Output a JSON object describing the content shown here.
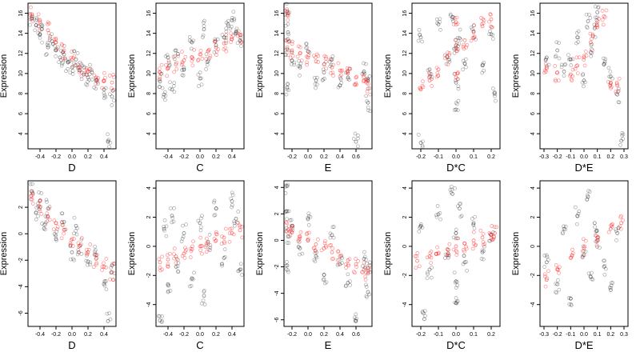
{
  "chart_data": [
    {
      "type": "scatter",
      "xlabel": "D",
      "ylabel": "Expression",
      "xlim": [
        -0.55,
        0.55
      ],
      "ylim": [
        2.5,
        17
      ],
      "xticks": [
        -0.4,
        -0.2,
        0.0,
        0.2,
        0.4
      ],
      "xticklabels": [
        "-0.4",
        "-0.2",
        "0.0",
        "0.2",
        "0.4"
      ],
      "yticks": [
        4,
        6,
        8,
        10,
        12,
        14,
        16
      ],
      "yticklabels": [
        "4",
        "6",
        "8",
        "10",
        "12",
        "14",
        "16"
      ],
      "series": [
        {
          "color": "#000000",
          "x": [
            -0.5,
            -0.45,
            -0.4,
            -0.38,
            -0.3,
            -0.25,
            -0.2,
            -0.15,
            -0.1,
            -0.05,
            0.0,
            0.05,
            0.1,
            0.15,
            0.2,
            0.25,
            0.3,
            0.4,
            0.45,
            0.5
          ],
          "y": [
            15.5,
            14.8,
            13.9,
            14.4,
            12.6,
            13.2,
            12.3,
            11.6,
            11.9,
            11.1,
            10.6,
            11.4,
            10.3,
            9.9,
            9.6,
            10.1,
            9.3,
            8.4,
            3.2,
            7.7
          ]
        },
        {
          "color": "#ff0000",
          "x": [
            -0.5,
            -0.4,
            -0.3,
            -0.2,
            -0.1,
            0.0,
            0.1,
            0.2,
            0.3,
            0.4,
            0.5
          ],
          "y": [
            15.9,
            15.1,
            14.3,
            13.1,
            12.3,
            11.4,
            10.6,
            10.2,
            9.6,
            9.3,
            9.1
          ]
        }
      ]
    },
    {
      "type": "scatter",
      "xlabel": "C",
      "ylabel": "Expression",
      "xlim": [
        -0.55,
        0.55
      ],
      "ylim": [
        2.5,
        17
      ],
      "xticks": [
        -0.4,
        -0.2,
        0.0,
        0.2,
        0.4
      ],
      "xticklabels": [
        "-0.4",
        "-0.2",
        "0.0",
        "0.2",
        "0.4"
      ],
      "yticks": [
        4,
        6,
        8,
        10,
        12,
        14,
        16
      ],
      "yticklabels": [
        "4",
        "6",
        "8",
        "10",
        "12",
        "14",
        "16"
      ],
      "series": [
        {
          "color": "#000000",
          "x": [
            -0.5,
            -0.45,
            -0.4,
            -0.35,
            -0.3,
            -0.2,
            -0.1,
            0.0,
            0.05,
            0.1,
            0.2,
            0.3,
            0.35,
            0.4,
            0.45,
            0.5
          ],
          "y": [
            9.2,
            7.9,
            11.6,
            8.4,
            12.3,
            10.4,
            13.1,
            9.5,
            14.4,
            11.2,
            12.8,
            13.6,
            14.9,
            15.3,
            14.1,
            13.3
          ]
        },
        {
          "color": "#ff0000",
          "x": [
            -0.5,
            -0.4,
            -0.3,
            -0.2,
            -0.1,
            0.0,
            0.1,
            0.2,
            0.3,
            0.4,
            0.5
          ],
          "y": [
            10.1,
            10.5,
            10.9,
            11.3,
            11.6,
            11.9,
            12.2,
            12.6,
            13.0,
            13.4,
            13.8
          ]
        }
      ]
    },
    {
      "type": "scatter",
      "xlabel": "E",
      "ylabel": "Expression",
      "xlim": [
        -0.3,
        0.8
      ],
      "ylim": [
        2.5,
        17
      ],
      "xticks": [
        -0.2,
        0.0,
        0.2,
        0.4,
        0.6
      ],
      "xticklabels": [
        "-0.2",
        "0.0",
        "0.2",
        "0.4",
        "0.6"
      ],
      "yticks": [
        4,
        6,
        8,
        10,
        12,
        14,
        16
      ],
      "yticklabels": [
        "4",
        "6",
        "8",
        "10",
        "12",
        "14",
        "16"
      ],
      "series": [
        {
          "color": "#000000",
          "x": [
            -0.26,
            -0.26,
            -0.26,
            -0.25,
            -0.2,
            -0.1,
            0.0,
            0.1,
            0.2,
            0.3,
            0.4,
            0.5,
            0.6,
            0.7,
            0.75,
            0.75
          ],
          "y": [
            16.2,
            12.4,
            8.6,
            14.1,
            11.3,
            10.6,
            12.2,
            9.3,
            10.1,
            11.4,
            8.8,
            9.6,
            3.2,
            10.2,
            7.1,
            9.4
          ]
        },
        {
          "color": "#ff0000",
          "x": [
            -0.26,
            -0.26,
            -0.2,
            -0.1,
            0.0,
            0.1,
            0.2,
            0.3,
            0.4,
            0.5,
            0.6,
            0.7,
            0.75
          ],
          "y": [
            15.8,
            12.6,
            12.3,
            12.0,
            11.6,
            11.2,
            10.9,
            10.6,
            10.3,
            10.0,
            9.6,
            9.3,
            8.5
          ]
        }
      ]
    },
    {
      "type": "scatter",
      "xlabel": "D*C",
      "ylabel": "Expression",
      "xlim": [
        -0.25,
        0.25
      ],
      "ylim": [
        2.5,
        17
      ],
      "xticks": [
        -0.2,
        -0.1,
        0.0,
        0.1,
        0.2
      ],
      "xticklabels": [
        "-0.2",
        "-0.1",
        "0.0",
        "0.1",
        "0.2"
      ],
      "yticks": [
        4,
        6,
        8,
        10,
        12,
        14,
        16
      ],
      "yticklabels": [
        "4",
        "6",
        "8",
        "10",
        "12",
        "14",
        "16"
      ],
      "series": [
        {
          "color": "#000000",
          "x": [
            -0.2,
            -0.15,
            -0.1,
            -0.05,
            -0.02,
            0.0,
            0.0,
            0.0,
            0.02,
            0.05,
            0.1,
            0.15,
            0.2,
            -0.2,
            0.22
          ],
          "y": [
            13.6,
            10.4,
            14.9,
            11.7,
            15.6,
            9.1,
            12.8,
            6.4,
            13.5,
            11.0,
            14.2,
            10.8,
            13.9,
            3.1,
            8.1
          ]
        },
        {
          "color": "#ff0000",
          "x": [
            -0.2,
            -0.15,
            -0.1,
            -0.05,
            0.0,
            0.0,
            0.0,
            0.05,
            0.1,
            0.15,
            0.2
          ],
          "y": [
            8.4,
            9.3,
            10.4,
            11.6,
            9.6,
            12.6,
            15.1,
            13.3,
            14.1,
            14.7,
            15.4
          ]
        }
      ]
    },
    {
      "type": "scatter",
      "xlabel": "D*E",
      "ylabel": "Expression",
      "xlim": [
        -0.33,
        0.33
      ],
      "ylim": [
        2.5,
        17
      ],
      "xticks": [
        -0.3,
        -0.2,
        -0.1,
        0.0,
        0.1,
        0.2,
        0.3
      ],
      "xticklabels": [
        "-0.3",
        "-0.2",
        "-0.1",
        "0.0",
        "0.1",
        "0.2",
        "0.3"
      ],
      "yticks": [
        4,
        6,
        8,
        10,
        12,
        14,
        16
      ],
      "yticklabels": [
        "4",
        "6",
        "8",
        "10",
        "12",
        "14",
        "16"
      ],
      "series": [
        {
          "color": "#000000",
          "x": [
            -0.28,
            -0.2,
            -0.15,
            -0.1,
            -0.05,
            0.0,
            0.03,
            0.05,
            0.08,
            0.1,
            0.15,
            0.2,
            0.25,
            0.28
          ],
          "y": [
            11.6,
            12.3,
            10.2,
            11.4,
            13.6,
            9.3,
            15.2,
            12.1,
            14.5,
            16.1,
            10.9,
            9.7,
            7.9,
            3.3
          ]
        },
        {
          "color": "#ff0000",
          "x": [
            -0.28,
            -0.2,
            -0.1,
            -0.05,
            0.0,
            0.05,
            0.1,
            0.15,
            0.2,
            0.25
          ],
          "y": [
            10.6,
            10.1,
            9.9,
            10.8,
            11.6,
            13.1,
            14.6,
            15.7,
            9.1,
            8.8
          ]
        }
      ]
    },
    {
      "type": "scatter",
      "xlabel": "D",
      "ylabel": "Expression",
      "xlim": [
        -0.55,
        0.55
      ],
      "ylim": [
        -7,
        4
      ],
      "xticks": [
        -0.4,
        -0.2,
        0.0,
        0.2,
        0.4
      ],
      "xticklabels": [
        "-0.4",
        "-0.2",
        "0.0",
        "0.2",
        "0.4"
      ],
      "yticks": [
        -6,
        -4,
        -2,
        0,
        2
      ],
      "yticklabels": [
        "-6",
        "-4",
        "-2",
        "0",
        "2"
      ],
      "series": [
        {
          "color": "#000000",
          "x": [
            -0.5,
            -0.45,
            -0.4,
            -0.35,
            -0.3,
            -0.2,
            -0.1,
            0.0,
            0.05,
            0.1,
            0.2,
            0.3,
            0.4,
            0.45,
            0.5
          ],
          "y": [
            3.2,
            1.6,
            2.5,
            0.4,
            1.9,
            -0.4,
            0.9,
            -1.4,
            0.6,
            -0.9,
            -2.1,
            -1.6,
            -3.8,
            -6.6,
            -2.4
          ]
        },
        {
          "color": "#ff0000",
          "x": [
            -0.5,
            -0.4,
            -0.3,
            -0.2,
            -0.1,
            0.0,
            0.1,
            0.2,
            0.3,
            0.4,
            0.5
          ],
          "y": [
            2.6,
            2.0,
            1.3,
            0.8,
            0.3,
            -0.4,
            -0.9,
            -1.4,
            -1.9,
            -2.5,
            -2.9
          ]
        }
      ]
    },
    {
      "type": "scatter",
      "xlabel": "C",
      "ylabel": "Expression",
      "xlim": [
        -0.55,
        0.55
      ],
      "ylim": [
        -5.5,
        4.5
      ],
      "xticks": [
        -0.4,
        -0.2,
        0.0,
        0.2,
        0.4
      ],
      "xticklabels": [
        "-0.4",
        "-0.2",
        "0.0",
        "0.2",
        "0.4"
      ],
      "yticks": [
        -4,
        -2,
        0,
        2,
        4
      ],
      "yticklabels": [
        "-4",
        "-2",
        "0",
        "2",
        "4"
      ],
      "series": [
        {
          "color": "#000000",
          "x": [
            -0.5,
            -0.45,
            -0.4,
            -0.35,
            -0.3,
            -0.2,
            -0.1,
            0.0,
            0.05,
            0.1,
            0.2,
            0.3,
            0.4,
            0.45,
            0.5
          ],
          "y": [
            -5.1,
            1.2,
            -2.6,
            2.1,
            -1.4,
            0.9,
            -2.2,
            1.6,
            -3.4,
            0.3,
            2.6,
            -0.8,
            3.1,
            1.9,
            -1.6
          ]
        },
        {
          "color": "#ff0000",
          "x": [
            -0.5,
            -0.4,
            -0.3,
            -0.2,
            -0.1,
            0.0,
            0.1,
            0.2,
            0.3,
            0.4,
            0.5
          ],
          "y": [
            -1.1,
            -0.9,
            -0.7,
            -0.5,
            -0.2,
            0.0,
            0.2,
            0.4,
            0.6,
            0.9,
            1.1
          ]
        }
      ]
    },
    {
      "type": "scatter",
      "xlabel": "E",
      "ylabel": "Expression",
      "xlim": [
        -0.3,
        0.8
      ],
      "ylim": [
        -6.5,
        4.5
      ],
      "xticks": [
        -0.2,
        0.0,
        0.2,
        0.4,
        0.6
      ],
      "xticklabels": [
        "-0.2",
        "0.0",
        "0.2",
        "0.4",
        "0.6"
      ],
      "yticks": [
        -6,
        -4,
        -2,
        0,
        2,
        4
      ],
      "yticklabels": [
        "-6",
        "-4",
        "-2",
        "0",
        "2",
        "4"
      ],
      "series": [
        {
          "color": "#000000",
          "x": [
            -0.26,
            -0.26,
            -0.26,
            -0.25,
            -0.2,
            -0.1,
            0.0,
            0.1,
            0.2,
            0.3,
            0.4,
            0.5,
            0.6,
            0.7,
            0.75,
            0.75
          ],
          "y": [
            4.1,
            2.2,
            -1.9,
            0.3,
            1.1,
            -0.6,
            1.6,
            -1.2,
            -2.6,
            0.4,
            -1.8,
            -3.2,
            -6.1,
            -1.4,
            -3.9,
            -2.1
          ]
        },
        {
          "color": "#ff0000",
          "x": [
            -0.25,
            -0.2,
            -0.1,
            0.0,
            0.1,
            0.2,
            0.3,
            0.4,
            0.5,
            0.6,
            0.7,
            0.75
          ],
          "y": [
            0.8,
            0.6,
            0.3,
            0.0,
            -0.3,
            -0.6,
            -0.9,
            -1.2,
            -1.5,
            -1.8,
            -2.2,
            -2.5
          ]
        }
      ]
    },
    {
      "type": "scatter",
      "xlabel": "D*C",
      "ylabel": "Expression",
      "xlim": [
        -0.25,
        0.25
      ],
      "ylim": [
        -5.5,
        4.5
      ],
      "xticks": [
        -0.2,
        -0.1,
        0.0,
        0.1,
        0.2
      ],
      "xticklabels": [
        "-0.2",
        "-0.1",
        "0.0",
        "0.1",
        "0.2"
      ],
      "yticks": [
        -4,
        -2,
        0,
        2,
        4
      ],
      "yticklabels": [
        "-4",
        "-2",
        "0",
        "2",
        "4"
      ],
      "series": [
        {
          "color": "#000000",
          "x": [
            -0.2,
            -0.15,
            -0.1,
            -0.05,
            -0.02,
            0.0,
            0.0,
            0.0,
            0.02,
            0.05,
            0.1,
            0.15,
            0.2,
            -0.18
          ],
          "y": [
            1.4,
            -1.6,
            2.2,
            -0.6,
            3.6,
            -2.4,
            0.9,
            -3.9,
            2.6,
            -1.1,
            1.6,
            -0.4,
            0.8,
            -5.0
          ]
        },
        {
          "color": "#ff0000",
          "x": [
            -0.22,
            -0.15,
            -0.1,
            -0.05,
            0.0,
            0.05,
            0.1,
            0.15,
            0.2,
            0.22
          ],
          "y": [
            -1.0,
            -0.7,
            -0.5,
            -0.2,
            0.0,
            0.2,
            0.4,
            0.6,
            0.8,
            0.9
          ]
        }
      ]
    },
    {
      "type": "scatter",
      "xlabel": "D*E",
      "ylabel": "Expression",
      "xlim": [
        -0.33,
        0.33
      ],
      "ylim": [
        -5.5,
        4.5
      ],
      "xticks": [
        -0.3,
        -0.2,
        -0.1,
        0.0,
        0.1,
        0.2,
        0.3
      ],
      "xticklabels": [
        "-0.3",
        "-0.2",
        "-0.1",
        "0.0",
        "0.1",
        "0.2",
        "0.3"
      ],
      "yticks": [
        -4,
        -2,
        0,
        2,
        4
      ],
      "yticklabels": [
        "-4",
        "-2",
        "0",
        "2",
        "4"
      ],
      "series": [
        {
          "color": "#000000",
          "x": [
            -0.28,
            -0.2,
            -0.15,
            -0.1,
            -0.05,
            0.0,
            0.03,
            0.05,
            0.08,
            0.1,
            0.15,
            0.2,
            0.25
          ],
          "y": [
            -1.1,
            -2.6,
            1.2,
            -3.6,
            2.1,
            -0.6,
            3.4,
            -2.1,
            1.6,
            0.4,
            -1.4,
            -3.0,
            0.9
          ]
        },
        {
          "color": "#ff0000",
          "x": [
            -0.28,
            -0.2,
            -0.1,
            0.0,
            0.1,
            0.2,
            0.28
          ],
          "y": [
            -2.3,
            -1.6,
            -0.8,
            -0.1,
            0.6,
            1.2,
            1.6
          ]
        }
      ]
    }
  ]
}
